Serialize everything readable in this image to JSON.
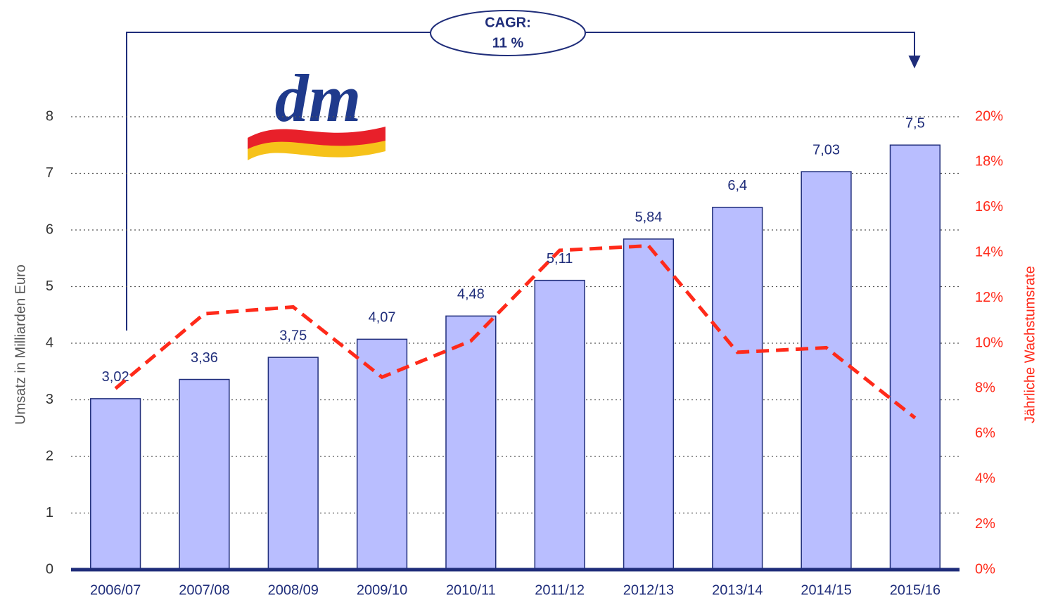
{
  "chart_data": {
    "type": "bar",
    "logo": "dm",
    "annotation": [
      "CAGR:",
      "11 %"
    ],
    "ylabel": "Umsatz in Milliarden Euro",
    "y2label": "Jährliche Wachstumsrate",
    "categories": [
      "2006/07",
      "2007/08",
      "2008/09",
      "2009/10",
      "2010/11",
      "2011/12",
      "2012/13",
      "2013/14",
      "2014/15",
      "2015/16"
    ],
    "series": [
      {
        "name": "Umsatz",
        "type": "bar",
        "color": "#b9beff",
        "values": [
          3.02,
          3.36,
          3.75,
          4.07,
          4.48,
          5.11,
          5.84,
          6.4,
          7.03,
          7.5
        ],
        "value_labels": [
          "3,02",
          "3,36",
          "3,75",
          "4,07",
          "4,48",
          "5,11",
          "5,84",
          "6,4",
          "7,03",
          "7,5"
        ]
      },
      {
        "name": "Wachstumsrate",
        "type": "line",
        "axis": "y2",
        "color": "#ff2a1a",
        "values": [
          8,
          11.3,
          11.6,
          8.5,
          10.1,
          14.1,
          14.3,
          9.6,
          9.8,
          6.7
        ]
      }
    ],
    "ylim": [
      0,
      8
    ],
    "yticks": [
      0,
      1,
      2,
      3,
      4,
      5,
      6,
      7,
      8
    ],
    "y2lim": [
      0,
      20
    ],
    "y2ticks": [
      {
        "value": 0,
        "label": "0%"
      },
      {
        "value": 2,
        "label": "2%"
      },
      {
        "value": 4,
        "label": "4%"
      },
      {
        "value": 6,
        "label": "6%"
      },
      {
        "value": 8,
        "label": "8%"
      },
      {
        "value": 10,
        "label": "10%"
      },
      {
        "value": 12,
        "label": "12%"
      },
      {
        "value": 14,
        "label": "14%"
      },
      {
        "value": 16,
        "label": "16%"
      },
      {
        "value": 18,
        "label": "18%"
      },
      {
        "value": 20,
        "label": "20%"
      }
    ],
    "grid": true
  }
}
